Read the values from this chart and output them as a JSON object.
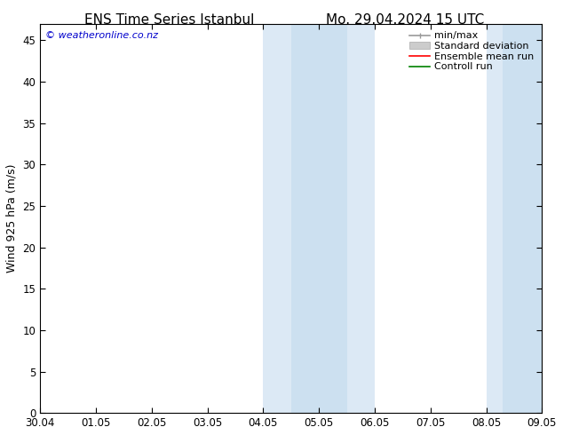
{
  "title_left": "ENS Time Series Istanbul",
  "title_right": "Mo. 29.04.2024 15 UTC",
  "ylabel": "Wind 925 hPa (m/s)",
  "watermark": "© weatheronline.co.nz",
  "xtick_labels": [
    "30.04",
    "01.05",
    "02.05",
    "03.05",
    "04.05",
    "05.05",
    "06.05",
    "07.05",
    "08.05",
    "09.05"
  ],
  "ytick_values": [
    0,
    5,
    10,
    15,
    20,
    25,
    30,
    35,
    40,
    45
  ],
  "ylim": [
    0,
    47
  ],
  "xlim": [
    0,
    9
  ],
  "shaded_bands": [
    {
      "xstart": 4.0,
      "xend": 4.5,
      "color": "#dce9f5"
    },
    {
      "xstart": 4.5,
      "xend": 5.5,
      "color": "#cce0f0"
    },
    {
      "xstart": 5.5,
      "xend": 6.0,
      "color": "#dce9f5"
    },
    {
      "xstart": 8.0,
      "xend": 8.3,
      "color": "#dce9f5"
    },
    {
      "xstart": 8.3,
      "xend": 9.0,
      "color": "#cce0f0"
    }
  ],
  "background_color": "#ffffff",
  "legend_entries": [
    {
      "label": "min/max",
      "color": "#999999",
      "lw": 1
    },
    {
      "label": "Standard deviation",
      "color": "#bbbbbb",
      "lw": 5
    },
    {
      "label": "Ensemble mean run",
      "color": "#ff0000",
      "lw": 1.2
    },
    {
      "label": "Controll run",
      "color": "#008000",
      "lw": 1.2
    }
  ],
  "title_fontsize": 11,
  "tick_fontsize": 8.5,
  "ylabel_fontsize": 9,
  "watermark_color": "#0000cc",
  "watermark_fontsize": 8,
  "legend_fontsize": 8
}
